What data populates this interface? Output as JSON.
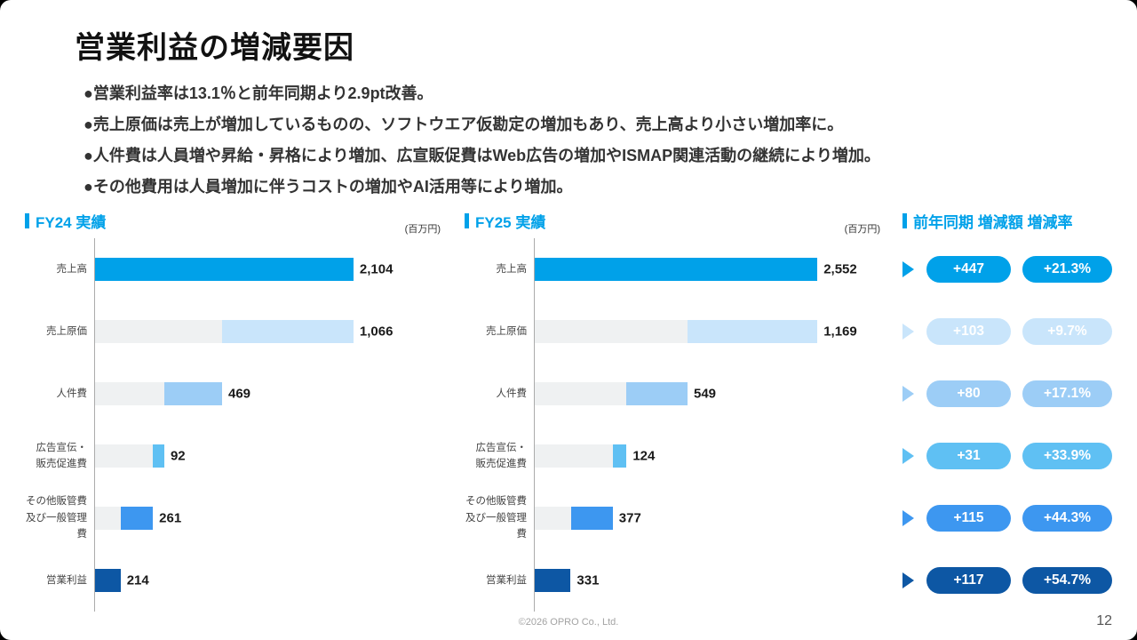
{
  "title": "営業利益の増減要因",
  "bullets": [
    "●営業利益率は13.1％と前年同期より2.9pt改善。",
    "●売上原価は売上が増加しているものの、ソフトウエア仮勘定の増加もあり、売上高より小さい増加率に。",
    "●人件費は人員増や昇給・昇格により増加、広宣販促費はWeb広告の増加やISMAP関連活動の継続により増加。",
    "●その他費用は人員増加に伴うコストの増加やAI活用等により増加。"
  ],
  "sections": {
    "fy24": {
      "header": "FY24 実績"
    },
    "fy25": {
      "header": "FY25 実績"
    },
    "comparison": {
      "header": "前年同期 増減額 増減率"
    }
  },
  "accent_color": "#00A1E9",
  "chart_data": [
    {
      "type": "bar",
      "variant": "waterfall",
      "title": "FY24 実績",
      "unit": "(百万円)",
      "categories": [
        "売上高",
        "売上原価",
        "人件費",
        "広告宣伝・\n販売促進費",
        "その他販管費\n及び一般管理費",
        "営業利益"
      ],
      "values": [
        2104,
        1066,
        469,
        92,
        261,
        214
      ],
      "value_labels": [
        "2,104",
        "1,066",
        "469",
        "92",
        "261",
        "214"
      ],
      "xlim": [
        0,
        2840
      ],
      "bar_colors": [
        "#00A1E9",
        "#C9E5FB",
        "#9CCDF6",
        "#5FC0F3",
        "#3D97F0",
        "#0D57A4"
      ]
    },
    {
      "type": "bar",
      "variant": "waterfall",
      "title": "FY25 実績",
      "unit": "(百万円)",
      "categories": [
        "売上高",
        "売上原価",
        "人件費",
        "広告宣伝・\n販売促進費",
        "その他販管費\n及び一般管理費",
        "営業利益"
      ],
      "values": [
        2552,
        1169,
        549,
        124,
        377,
        331
      ],
      "value_labels": [
        "2,552",
        "1,169",
        "549",
        "124",
        "377",
        "331"
      ],
      "xlim": [
        0,
        3150
      ],
      "bar_colors": [
        "#00A1E9",
        "#C9E5FB",
        "#9CCDF6",
        "#5FC0F3",
        "#3D97F0",
        "#0D57A4"
      ]
    },
    {
      "type": "table",
      "title": "前年同期 増減額 増減率",
      "columns": [
        "増減額",
        "増減率"
      ],
      "rows": [
        {
          "delta": "+447",
          "rate": "+21.3%"
        },
        {
          "delta": "+103",
          "rate": "+9.7%"
        },
        {
          "delta": "+80",
          "rate": "+17.1%"
        },
        {
          "delta": "+31",
          "rate": "+33.9%"
        },
        {
          "delta": "+115",
          "rate": "+44.3%"
        },
        {
          "delta": "+117",
          "rate": "+54.7%"
        }
      ],
      "colors": [
        "#00A1E9",
        "#C9E5FB",
        "#9CCDF6",
        "#5FC0F3",
        "#3D97F0",
        "#0D57A4"
      ]
    }
  ],
  "footer": {
    "copyright": "©2026 OPRO Co., Ltd.",
    "page": "12"
  }
}
